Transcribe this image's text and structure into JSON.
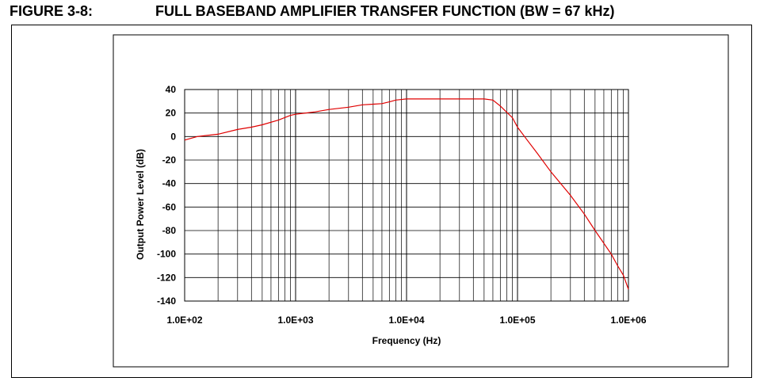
{
  "figure": {
    "label": "FIGURE 3-8:",
    "title": "FULL BASEBAND AMPLIFIER TRANSFER FUNCTION (BW = 67 kHz)"
  },
  "chart_data": {
    "type": "line",
    "title": "",
    "xlabel": "Frequency (Hz)",
    "ylabel": "Output Power Level (dB)",
    "x_scale": "log",
    "xlim": [
      100,
      1000000
    ],
    "ylim": [
      -140,
      40
    ],
    "x_ticks": [
      "1.0E+02",
      "1.0E+03",
      "1.0E+04",
      "1.0E+05",
      "1.0E+06"
    ],
    "y_ticks": [
      "40",
      "20",
      "0",
      "-20",
      "-40",
      "-60",
      "-80",
      "-100",
      "-120",
      "-140"
    ],
    "grid": true,
    "line_color": "#e00000",
    "series": [
      {
        "points": [
          [
            100,
            -3
          ],
          [
            130,
            0
          ],
          [
            200,
            2
          ],
          [
            300,
            6
          ],
          [
            400,
            8
          ],
          [
            500,
            10
          ],
          [
            700,
            14
          ],
          [
            900,
            18
          ],
          [
            1000,
            19
          ],
          [
            1500,
            21
          ],
          [
            2000,
            23
          ],
          [
            3000,
            25
          ],
          [
            4000,
            27
          ],
          [
            5000,
            27.5
          ],
          [
            6000,
            28
          ],
          [
            7000,
            29.5
          ],
          [
            8000,
            31
          ],
          [
            10000,
            32
          ],
          [
            20000,
            32
          ],
          [
            30000,
            32
          ],
          [
            40000,
            32
          ],
          [
            50000,
            32
          ],
          [
            60000,
            31
          ],
          [
            70000,
            26
          ],
          [
            90000,
            16
          ],
          [
            100000,
            8
          ],
          [
            120000,
            -2
          ],
          [
            150000,
            -14
          ],
          [
            200000,
            -30
          ],
          [
            300000,
            -50
          ],
          [
            400000,
            -66
          ],
          [
            500000,
            -80
          ],
          [
            700000,
            -100
          ],
          [
            800000,
            -110
          ],
          [
            900000,
            -118
          ],
          [
            1000000,
            -130
          ]
        ]
      }
    ]
  }
}
